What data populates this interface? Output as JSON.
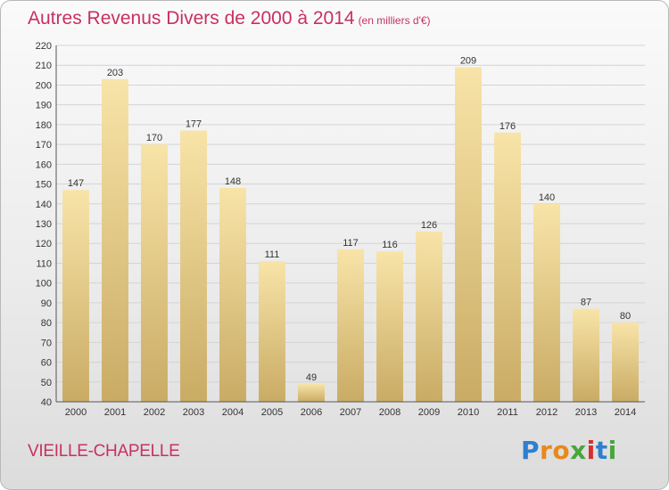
{
  "chart_data": {
    "type": "bar",
    "title": "Autres Revenus Divers de 2000 à 2014",
    "unit_note": "(en milliers d'€)",
    "categories": [
      "2000",
      "2001",
      "2002",
      "2003",
      "2004",
      "2005",
      "2006",
      "2007",
      "2008",
      "2009",
      "2010",
      "2011",
      "2012",
      "2013",
      "2014"
    ],
    "values": [
      147,
      203,
      170,
      177,
      148,
      111,
      49,
      117,
      116,
      126,
      209,
      176,
      140,
      87,
      80
    ],
    "ylim": [
      40,
      220
    ],
    "yticks": [
      40,
      50,
      60,
      70,
      80,
      90,
      100,
      110,
      120,
      130,
      140,
      150,
      160,
      170,
      180,
      190,
      200,
      210,
      220
    ],
    "grid": true,
    "bar_color_top": "#f8e4a8",
    "bar_color_bottom": "#c9ab64"
  },
  "commune": "VIEILLE-CHAPELLE",
  "logo": {
    "parts": [
      "P",
      "r",
      "o",
      "x",
      "i",
      "t",
      "i"
    ]
  },
  "colors": {
    "title": "#c8315f",
    "commune": "#c8315f"
  }
}
